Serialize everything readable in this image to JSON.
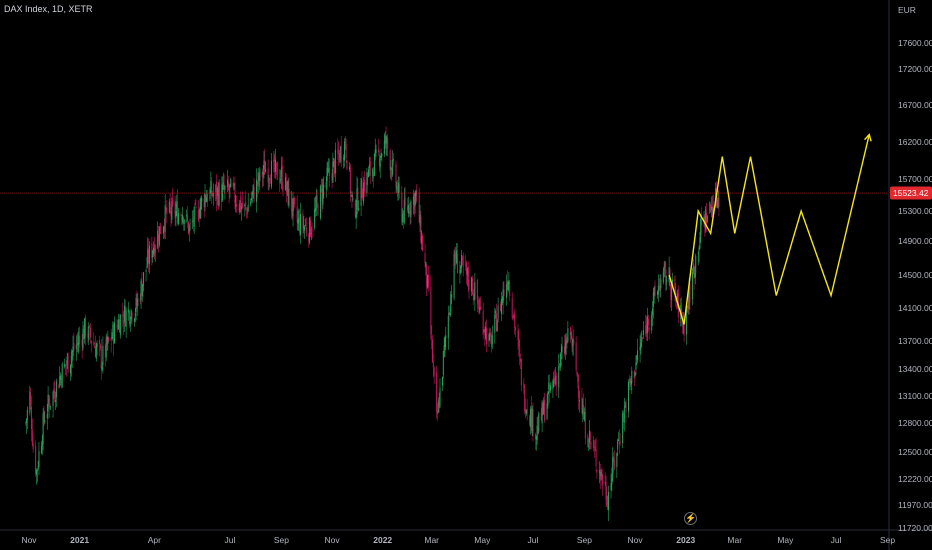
{
  "header": {
    "title": "DAX Index, 1D, XETR"
  },
  "currency": "EUR",
  "price_tag": {
    "value": "15523.42",
    "color": "#e0282e"
  },
  "colors": {
    "background": "#000000",
    "up": "#26a65b",
    "down": "#c2185b",
    "projection": "#f5e61a",
    "text": "#b2b5be"
  },
  "icons": {
    "replay": "lightning-icon"
  },
  "chart_data": {
    "type": "candlestick",
    "title": "DAX Index, 1D, XETR",
    "ylim": [
      11720,
      18100
    ],
    "y_ticks": [
      "17600.00",
      "17200.00",
      "16700.00",
      "16200.00",
      "15700.00",
      "15300.00",
      "14900.00",
      "14500.00",
      "14100.00",
      "13700.00",
      "13400.00",
      "13100.00",
      "12800.00",
      "12500.00",
      "12220.00",
      "11970.00",
      "11720.00"
    ],
    "x_ticks": [
      {
        "label": "Nov",
        "date": "2020-11",
        "bold": false
      },
      {
        "label": "2021",
        "date": "2021-01",
        "bold": true
      },
      {
        "label": "Apr",
        "date": "2021-04",
        "bold": false
      },
      {
        "label": "Jul",
        "date": "2021-07",
        "bold": false
      },
      {
        "label": "Sep",
        "date": "2021-09",
        "bold": false
      },
      {
        "label": "Nov",
        "date": "2021-11",
        "bold": false
      },
      {
        "label": "2022",
        "date": "2022-01",
        "bold": true
      },
      {
        "label": "Mar",
        "date": "2022-03",
        "bold": false
      },
      {
        "label": "May",
        "date": "2022-05",
        "bold": false
      },
      {
        "label": "Jul",
        "date": "2022-07",
        "bold": false
      },
      {
        "label": "Sep",
        "date": "2022-09",
        "bold": false
      },
      {
        "label": "Nov",
        "date": "2022-11",
        "bold": false
      },
      {
        "label": "2023",
        "date": "2023-01",
        "bold": true
      },
      {
        "label": "Mar",
        "date": "2023-03",
        "bold": false
      },
      {
        "label": "May",
        "date": "2023-05",
        "bold": false
      },
      {
        "label": "Jul",
        "date": "2023-07",
        "bold": false
      },
      {
        "label": "Sep",
        "date": "2023-09",
        "bold": false
      }
    ],
    "price_path": [
      [
        "2020-10-28",
        12800
      ],
      [
        "2020-11-02",
        13100
      ],
      [
        "2020-11-06",
        12550
      ],
      [
        "2020-11-10",
        12300
      ],
      [
        "2020-11-20",
        12900
      ],
      [
        "2020-12-10",
        13350
      ],
      [
        "2021-01-08",
        13850
      ],
      [
        "2021-01-28",
        13500
      ],
      [
        "2021-02-20",
        14000
      ],
      [
        "2021-03-10",
        14100
      ],
      [
        "2021-03-25",
        14700
      ],
      [
        "2021-04-15",
        15250
      ],
      [
        "2021-05-05",
        15300
      ],
      [
        "2021-05-13",
        15050
      ],
      [
        "2021-06-01",
        15500
      ],
      [
        "2021-07-01",
        15550
      ],
      [
        "2021-07-20",
        15300
      ],
      [
        "2021-08-12",
        15850
      ],
      [
        "2021-09-01",
        15750
      ],
      [
        "2021-09-20",
        15150
      ],
      [
        "2021-10-05",
        15050
      ],
      [
        "2021-10-20",
        15550
      ],
      [
        "2021-11-17",
        16200
      ],
      [
        "2021-11-26",
        15300
      ],
      [
        "2021-12-10",
        15650
      ],
      [
        "2022-01-05",
        16200
      ],
      [
        "2022-01-25",
        15250
      ],
      [
        "2022-02-10",
        15500
      ],
      [
        "2022-02-24",
        14350
      ],
      [
        "2022-03-07",
        12800
      ],
      [
        "2022-03-29",
        14700
      ],
      [
        "2022-04-20",
        14350
      ],
      [
        "2022-05-10",
        13650
      ],
      [
        "2022-06-01",
        14500
      ],
      [
        "2022-06-20",
        13100
      ],
      [
        "2022-07-05",
        12700
      ],
      [
        "2022-08-15",
        13800
      ],
      [
        "2022-09-01",
        12800
      ],
      [
        "2022-09-29",
        12050
      ],
      [
        "2022-10-25",
        13200
      ],
      [
        "2022-11-30",
        14400
      ],
      [
        "2022-12-10",
        14500
      ],
      [
        "2022-12-30",
        13900
      ],
      [
        "2023-01-20",
        15100
      ],
      [
        "2023-02-03",
        15400
      ],
      [
        "2023-02-10",
        15500
      ]
    ],
    "projection": [
      [
        "2022-12-12",
        14500
      ],
      [
        "2022-12-30",
        13900
      ],
      [
        "2023-01-16",
        15300
      ],
      [
        "2023-01-31",
        15000
      ],
      [
        "2023-02-14",
        16000
      ],
      [
        "2023-03-01",
        15000
      ],
      [
        "2023-03-20",
        16000
      ],
      [
        "2023-04-20",
        14250
      ],
      [
        "2023-05-20",
        15300
      ],
      [
        "2023-06-25",
        14250
      ],
      [
        "2023-08-10",
        16300
      ]
    ]
  }
}
